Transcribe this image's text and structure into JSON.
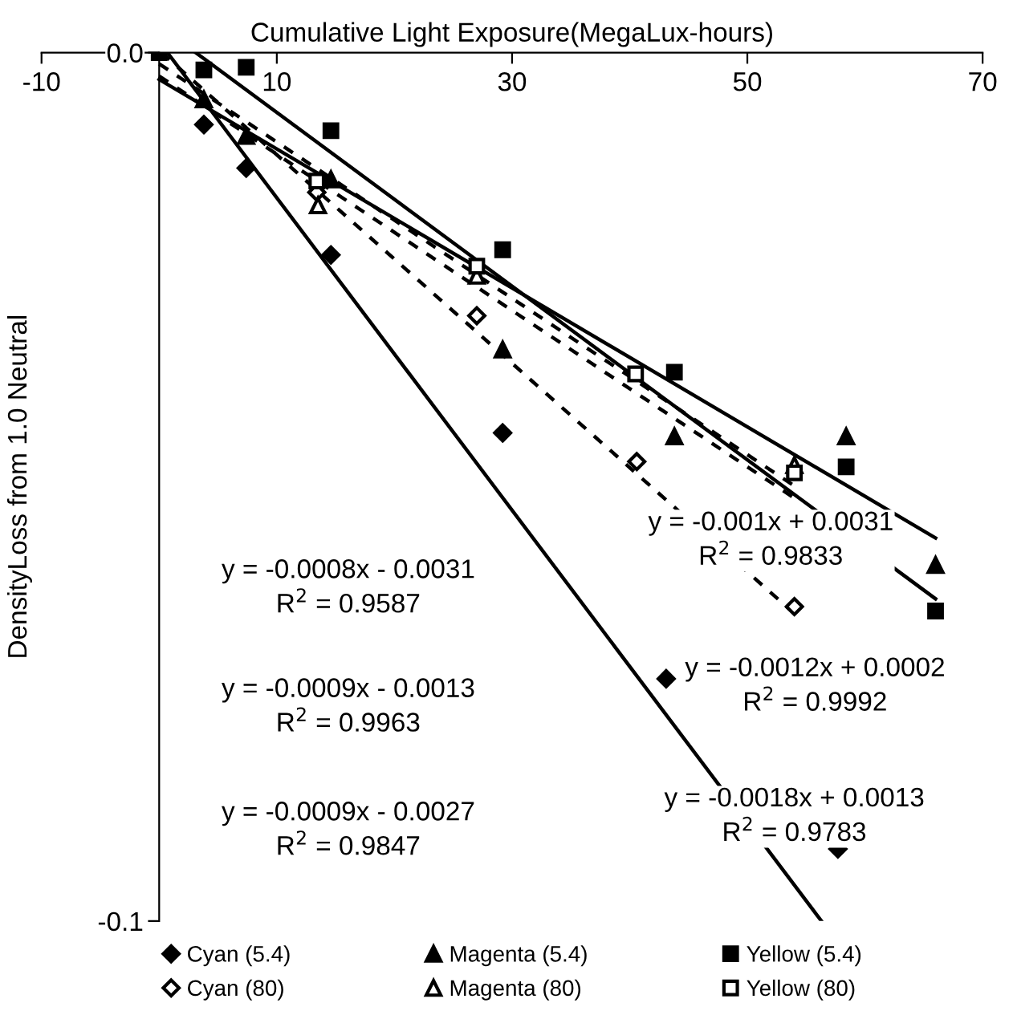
{
  "chart_data": {
    "type": "scatter",
    "xlabel": "Cumulative Light Exposure(MegaLux-hours)",
    "ylabel": "DensityLoss from 1.0 Neutral",
    "xlim": [
      -10,
      70
    ],
    "ylim": [
      -0.1,
      0
    ],
    "xticks": [
      -10,
      10,
      30,
      50,
      70
    ],
    "yticks": [
      {
        "value": 0,
        "label": "0.0"
      },
      {
        "value": -0.1,
        "label": "-0.1"
      }
    ],
    "grid": false,
    "legend": "bottom",
    "series": [
      {
        "name": "Cyan (5.4)",
        "color": "#000000",
        "marker": "diamond",
        "x": [
          3.8,
          7.4,
          14.6,
          29.2,
          43.1,
          57.7
        ],
        "values": [
          -0.0083,
          -0.0133,
          -0.0233,
          -0.0438,
          -0.0721,
          -0.0917
        ]
      },
      {
        "name": "Magenta (5.4)",
        "color": "#000000",
        "marker": "triangle",
        "x": [
          3.8,
          7.4,
          14.6,
          29.2,
          43.8,
          58.4,
          66
        ],
        "values": [
          -0.0054,
          -0.0096,
          -0.0146,
          -0.0342,
          -0.0442,
          -0.0442,
          -0.059
        ]
      },
      {
        "name": "Yellow (5.4)",
        "color": "#000000",
        "marker": "square",
        "x": [
          0,
          3.8,
          7.4,
          14.6,
          29.2,
          43.8,
          58.4,
          66
        ],
        "values": [
          0,
          -0.002,
          -0.0017,
          -0.009,
          -0.0227,
          -0.0368,
          -0.0477,
          -0.0643
        ]
      },
      {
        "name": "Cyan (80)",
        "color": "#000000",
        "marker": "diamond",
        "x": [
          13.4,
          27,
          40.6,
          54
        ],
        "values": [
          -0.0161,
          -0.0303,
          -0.0471,
          -0.0638
        ]
      },
      {
        "name": "Magenta (80)",
        "color": "#000000",
        "marker": "triangle",
        "x": [
          13.5,
          27,
          54
        ],
        "values": [
          -0.0176,
          -0.0257,
          -0.0475
        ]
      },
      {
        "name": "Yellow (80)",
        "color": "#000000",
        "marker": "square",
        "x": [
          13.4,
          27,
          40.5,
          54
        ],
        "values": [
          -0.0148,
          -0.0246,
          -0.037,
          -0.0484
        ]
      },
      {
        "type": "line",
        "color": "#000000",
        "line_style": "solid",
        "marker": "none",
        "x": [
          0.7,
          56.3
        ],
        "values": [
          0,
          -0.1
        ]
      },
      {
        "type": "line",
        "color": "#000000",
        "line_style": "solid",
        "marker": "none",
        "x": [
          0,
          66
        ],
        "values": [
          -0.0031,
          -0.0559
        ]
      },
      {
        "type": "line",
        "color": "#000000",
        "line_style": "solid",
        "marker": "none",
        "x": [
          3.1,
          66
        ],
        "values": [
          0,
          -0.0629
        ]
      },
      {
        "type": "line",
        "color": "#000000",
        "line_style": "dashed",
        "marker": "none",
        "x": [
          0.2,
          54
        ],
        "values": [
          0,
          -0.0646
        ]
      },
      {
        "type": "line",
        "color": "#000000",
        "line_style": "dashed",
        "marker": "none",
        "x": [
          0,
          54
        ],
        "values": [
          -0.0013,
          -0.0499
        ]
      },
      {
        "type": "line",
        "color": "#000000",
        "line_style": "dashed",
        "marker": "none",
        "x": [
          0,
          54
        ],
        "values": [
          -0.0027,
          -0.0513
        ]
      }
    ],
    "annotations": [
      "y = -0.0008x - 0.0031\nR$^{2}$ = 0.9587",
      "y = -0.0009x - 0.0013\nR$^{2}$ = 0.9963",
      "y = -0.0009x - 0.0027\nR$^{2}$ = 0.9847",
      "y = -0.001x + 0.0031\nR$^{2}$ = 0.9833",
      "y = -0.0012x + 0.0002\nR$^{2}$ = 0.9992",
      "y = -0.0018x + 0.0013\nR$^{2}$ = 0.9783"
    ]
  }
}
